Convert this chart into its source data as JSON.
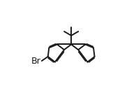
{
  "bg_color": "#ffffff",
  "line_color": "#1a1a1a",
  "lw": 1.4,
  "figsize": [
    1.95,
    1.43
  ],
  "dpi": 100,
  "br_label": "Br",
  "br_fontsize": 9.0,
  "mcx": 0.52,
  "mcy": 0.47,
  "BL": 0.115
}
